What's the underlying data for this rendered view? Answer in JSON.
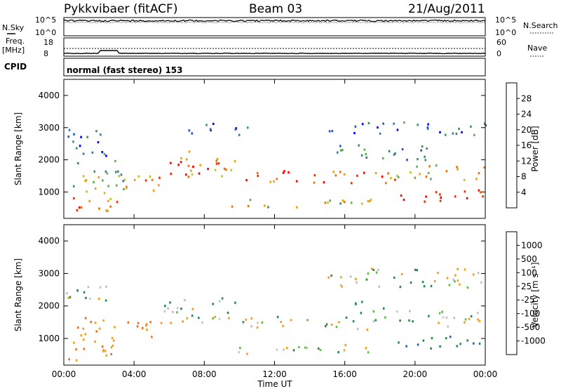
{
  "header": {
    "station": "Pykkvibaer (fitACF)",
    "beam": "Beam 03",
    "date": "21/Aug/2011"
  },
  "strip_labels": {
    "nsky": "N.Sky",
    "nsearch": "N.Search",
    "freq_line1": "Freq.",
    "freq_line2": "[MHz]",
    "nave": "Nave",
    "cpid": "CPID",
    "mode": "normal (fast stereo) 153",
    "noise_ticks_left": [
      "10^5",
      "10^0"
    ],
    "noise_ticks_right": [
      "10^5",
      "10^0"
    ],
    "freq_ticks": [
      "18",
      "8"
    ],
    "nave_ticks": [
      "60",
      "0"
    ]
  },
  "colors": {
    "power_scale": [
      "#0000ff",
      "#2255cc",
      "#3a7a9a",
      "#3f8f5f",
      "#5fae4f",
      "#c9c020",
      "#f0a000",
      "#f07000",
      "#e83000",
      "#ff0000"
    ],
    "velocity_scale": [
      "#1a3fa8",
      "#2a60b0",
      "#2a8a4a",
      "#5cc040",
      "#c0c0b8",
      "#c8c8c0",
      "#f0a020",
      "#f07020",
      "#e84020",
      "#ff0000"
    ]
  },
  "chart_data": [
    {
      "type": "heatmap",
      "name": "power",
      "ylabel": "Slant Range [km]",
      "xlabel": "Time UT",
      "x_ticks": [
        "00:00",
        "04:00",
        "08:00",
        "12:00",
        "16:00",
        "20:00",
        "00:00"
      ],
      "x_range_hours": [
        0,
        24
      ],
      "y_range": [
        180,
        4500
      ],
      "y_ticks": [
        1000,
        2000,
        3000,
        4000
      ],
      "colorbar_label": "Power [dB]",
      "colorbar_ticks": [
        "4",
        "8",
        "12",
        "16",
        "20",
        "24",
        "28"
      ],
      "colorbar_range": [
        0,
        30
      ],
      "bands": [
        {
          "t0": 0.0,
          "t1": 3.0,
          "r0": 350,
          "r1": 900,
          "level": 22
        },
        {
          "t0": 0.5,
          "t1": 3.5,
          "r0": 900,
          "r1": 2000,
          "level": 14
        },
        {
          "t0": 3.5,
          "t1": 5.8,
          "r0": 1000,
          "r1": 1600,
          "level": 20
        },
        {
          "t0": 5.5,
          "t1": 10.0,
          "r0": 1500,
          "r1": 2300,
          "level": 22
        },
        {
          "t0": 10.0,
          "t1": 18.5,
          "r0": 1300,
          "r1": 1700,
          "level": 24
        },
        {
          "t0": 9.5,
          "t1": 17.5,
          "r0": 550,
          "r1": 850,
          "level": 16
        },
        {
          "t0": 18.5,
          "t1": 24.0,
          "r0": 1400,
          "r1": 1900,
          "level": 20
        },
        {
          "t0": 19.0,
          "t1": 24.0,
          "r0": 700,
          "r1": 1100,
          "level": 26
        },
        {
          "t0": 0.2,
          "t1": 2.5,
          "r0": 2000,
          "r1": 3000,
          "level": 8
        },
        {
          "t0": 7.0,
          "t1": 10.5,
          "r0": 2800,
          "r1": 3200,
          "level": 6
        },
        {
          "t0": 15.0,
          "t1": 24.0,
          "r0": 2800,
          "r1": 3200,
          "level": 6
        },
        {
          "t0": 15.0,
          "t1": 21.0,
          "r0": 2000,
          "r1": 2500,
          "level": 8
        }
      ]
    },
    {
      "type": "heatmap",
      "name": "velocity",
      "ylabel": "Slant Range [km]",
      "xlabel": "Time UT",
      "x_ticks": [
        "00:00",
        "04:00",
        "08:00",
        "12:00",
        "16:00",
        "20:00",
        "00:00"
      ],
      "x_range_hours": [
        0,
        24
      ],
      "y_range": [
        180,
        4500
      ],
      "y_ticks": [
        1000,
        2000,
        3000,
        4000
      ],
      "colorbar_label": "Velocity [m s⁻¹]",
      "colorbar_ticks": [
        "1000",
        "500",
        "100",
        "25",
        "-25",
        "-100",
        "-500",
        "-1000"
      ],
      "bands": [
        {
          "t0": 0.0,
          "t1": 3.0,
          "r0": 350,
          "r1": 900,
          "vel": -300
        },
        {
          "t0": 0.5,
          "t1": 3.0,
          "r0": 900,
          "r1": 1800,
          "vel": -200
        },
        {
          "t0": 3.5,
          "t1": 5.5,
          "r0": 1000,
          "r1": 1600,
          "vel": -300
        },
        {
          "t0": 5.5,
          "t1": 10.0,
          "r0": 1500,
          "r1": 2300,
          "vel": 0
        },
        {
          "t0": 10.0,
          "t1": 18.5,
          "r0": 1300,
          "r1": 1700,
          "vel": 0
        },
        {
          "t0": 9.5,
          "t1": 17.5,
          "r0": 550,
          "r1": 850,
          "vel": 0
        },
        {
          "t0": 18.5,
          "t1": 24.0,
          "r0": 1400,
          "r1": 1900,
          "vel": 0
        },
        {
          "t0": 19.0,
          "t1": 24.0,
          "r0": 700,
          "r1": 1100,
          "vel": 300
        },
        {
          "t0": 0.0,
          "t1": 2.5,
          "r0": 2000,
          "r1": 2700,
          "vel": 0
        },
        {
          "t0": 15.0,
          "t1": 24.0,
          "r0": 2600,
          "r1": 3200,
          "vel": 0
        },
        {
          "t0": 16.5,
          "t1": 18.5,
          "r0": 1800,
          "r1": 2200,
          "vel": 200
        }
      ]
    }
  ]
}
